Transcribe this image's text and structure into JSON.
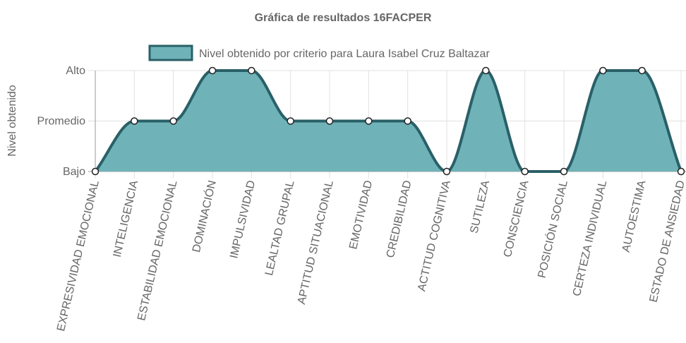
{
  "chart_data": {
    "type": "area",
    "title": "Gráfica de resultados 16FACPER",
    "ylabel": "Nivel obtenido",
    "xlabel": "",
    "y_levels": [
      "Bajo",
      "Promedio",
      "Alto"
    ],
    "categories": [
      "EXPRESIVIDAD EMOCIONAL",
      "INTELIGENCIA",
      "ESTABILIDAD EMOCIONAL",
      "DOMINACIÓN",
      "IMPULSIVIDAD",
      "LEALTAD GRUPAL",
      "APTITUD SITUACIONAL",
      "EMOTIVIDAD",
      "CREDIBILIDAD",
      "ACTITUD COGNITIVA",
      "SUTILEZA",
      "CONSCIENCIA",
      "POSICIÓN SOCIAL",
      "CERTEZA INDIVIDUAL",
      "AUTOESTIMA",
      "ESTADO DE ANSIEDAD"
    ],
    "series": [
      {
        "name": "Nivel obtenido por criterio para Laura Isabel Cruz Baltazar",
        "values": [
          "Bajo",
          "Promedio",
          "Promedio",
          "Alto",
          "Alto",
          "Promedio",
          "Promedio",
          "Promedio",
          "Promedio",
          "Bajo",
          "Alto",
          "Bajo",
          "Bajo",
          "Alto",
          "Alto",
          "Bajo"
        ]
      }
    ],
    "legend_position": "top",
    "grid": true,
    "colors": {
      "fill": "#6fb3b8",
      "line": "#2a6068",
      "point_fill": "#ffffff",
      "point_stroke": "#222222",
      "grid": "#e0e0e0",
      "axis_line": "#9a9a9a",
      "text": "#666666"
    }
  }
}
